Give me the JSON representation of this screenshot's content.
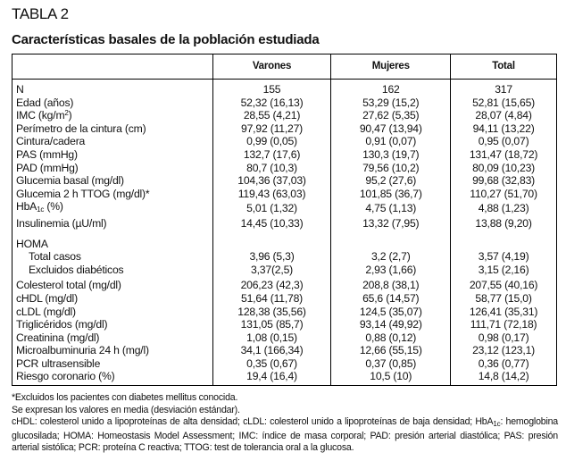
{
  "table_label": "TABLA 2",
  "table_title": "Características basales de la población estudiada",
  "columns": [
    "",
    "Varones",
    "Mujeres",
    "Total"
  ],
  "rows": [
    {
      "label": "N",
      "values": [
        "155",
        "162",
        "317"
      ]
    },
    {
      "label": "Edad (años)",
      "values": [
        "52,32 (16,13)",
        "53,29 (15,2)",
        "52,81 (15,65)"
      ]
    },
    {
      "label": "IMC (kg/m",
      "sup": "2",
      "label_after": ")",
      "values": [
        "28,55 (4,21)",
        "27,62 (5,35)",
        "28,07 (4,84)"
      ]
    },
    {
      "label": "Perímetro de la cintura (cm)",
      "values": [
        "97,92 (11,27)",
        "90,47 (13,94)",
        "94,11 (13,22)"
      ]
    },
    {
      "label": "Cintura/cadera",
      "values": [
        "0,99 (0,05)",
        "0,91 (0,07)",
        "0,95 (0,07)"
      ]
    },
    {
      "label": "PAS (mmHg)",
      "values": [
        "132,7 (17,6)",
        "130,3 (19,7)",
        "131,47 (18,72)"
      ]
    },
    {
      "label": "PAD (mmHg)",
      "values": [
        "80,7 (10,3)",
        "79,56 (10,2)",
        "80,09 (10,23)"
      ]
    },
    {
      "label": "Glucemia basal (mg/dl)",
      "values": [
        "104,36 (37,03)",
        "95,2 (27,6)",
        "99,68 (32,83)"
      ]
    },
    {
      "label": "Glucemia 2 h TTOG (mg/dl)*",
      "values": [
        "119,43 (63,03)",
        "101,85 (36,7)",
        "110,27 (51,70)"
      ]
    },
    {
      "label": "HbA",
      "sub": "1c",
      "label_after": " (%)",
      "values": [
        "5,01 (1,32)",
        "4,75 (1,13)",
        "4,88 (1,23)"
      ]
    },
    {
      "label": "Insulinemia (µU/ml)",
      "values": [
        "14,45 (10,33)",
        "13,32 (7,95)",
        "13,88 (9,20)"
      ]
    },
    {
      "gap": true
    },
    {
      "label": "HOMA",
      "values": [
        "",
        "",
        ""
      ]
    },
    {
      "label": "Total casos",
      "indent": true,
      "values": [
        "3,96 (5,3)",
        "3,2 (2,7)",
        "3,57 (4,19)"
      ]
    },
    {
      "label": "Excluidos diabéticos",
      "indent": true,
      "values": [
        "3,37(2,5)",
        "2,93 (1,66)",
        "3,15 (2,16)"
      ]
    },
    {
      "gap2": true
    },
    {
      "label": "Colesterol total (mg/dl)",
      "values": [
        "206,23 (42,3)",
        "208,8 (38,1)",
        "207,55 (40,16)"
      ]
    },
    {
      "label": "cHDL (mg/dl)",
      "values": [
        "51,64 (11,78)",
        "65,6 (14,57)",
        "58,77 (15,0)"
      ]
    },
    {
      "label": "cLDL (mg/dl)",
      "values": [
        "128,38 (35,56)",
        "124,5 (35,07)",
        "126,41 (35,31)"
      ]
    },
    {
      "label": "Triglicéridos (mg/dl)",
      "values": [
        "131,05 (85,7)",
        "93,14 (49,92)",
        "111,71 (72,18)"
      ]
    },
    {
      "label": "Creatinina (mg/dl)",
      "values": [
        "1,08 (0,15)",
        "0,88 (0,12)",
        "0,98 (0,17)"
      ]
    },
    {
      "label": "Microalbuminuria 24 h (mg/l)",
      "values": [
        "34,1 (166,34)",
        "12,66 (55,15)",
        "23,12 (123,1)"
      ]
    },
    {
      "label": "PCR ultrasensible",
      "values": [
        "0,35 (0,67)",
        "0,37 (0,85)",
        "0,36 (0,77)"
      ]
    },
    {
      "label": "Riesgo coronario (%)",
      "values": [
        "19,4 (16,4)",
        "10,5 (10)",
        "14,8 (14,2)"
      ]
    }
  ],
  "notes": {
    "n1": "*Excluidos los pacientes con diabetes mellitus conocida.",
    "n2": "Se expresan los valores en media (desviación estándar).",
    "n3a": "cHDL: colesterol unido a lipoproteínas de alta densidad; cLDL: colesterol unido a lipoproteínas de baja densidad; HbA",
    "n3sub": "1c",
    "n3b": ": hemoglobina glucosilada; HOMA: Homeostasis Model Assessment; IMC: índice de masa corporal; PAD: presión arterial diastólica; PAS: presión arterial sistólica; PCR: proteína C reactiva; TTOG: test de tolerancia oral a la glucosa."
  }
}
